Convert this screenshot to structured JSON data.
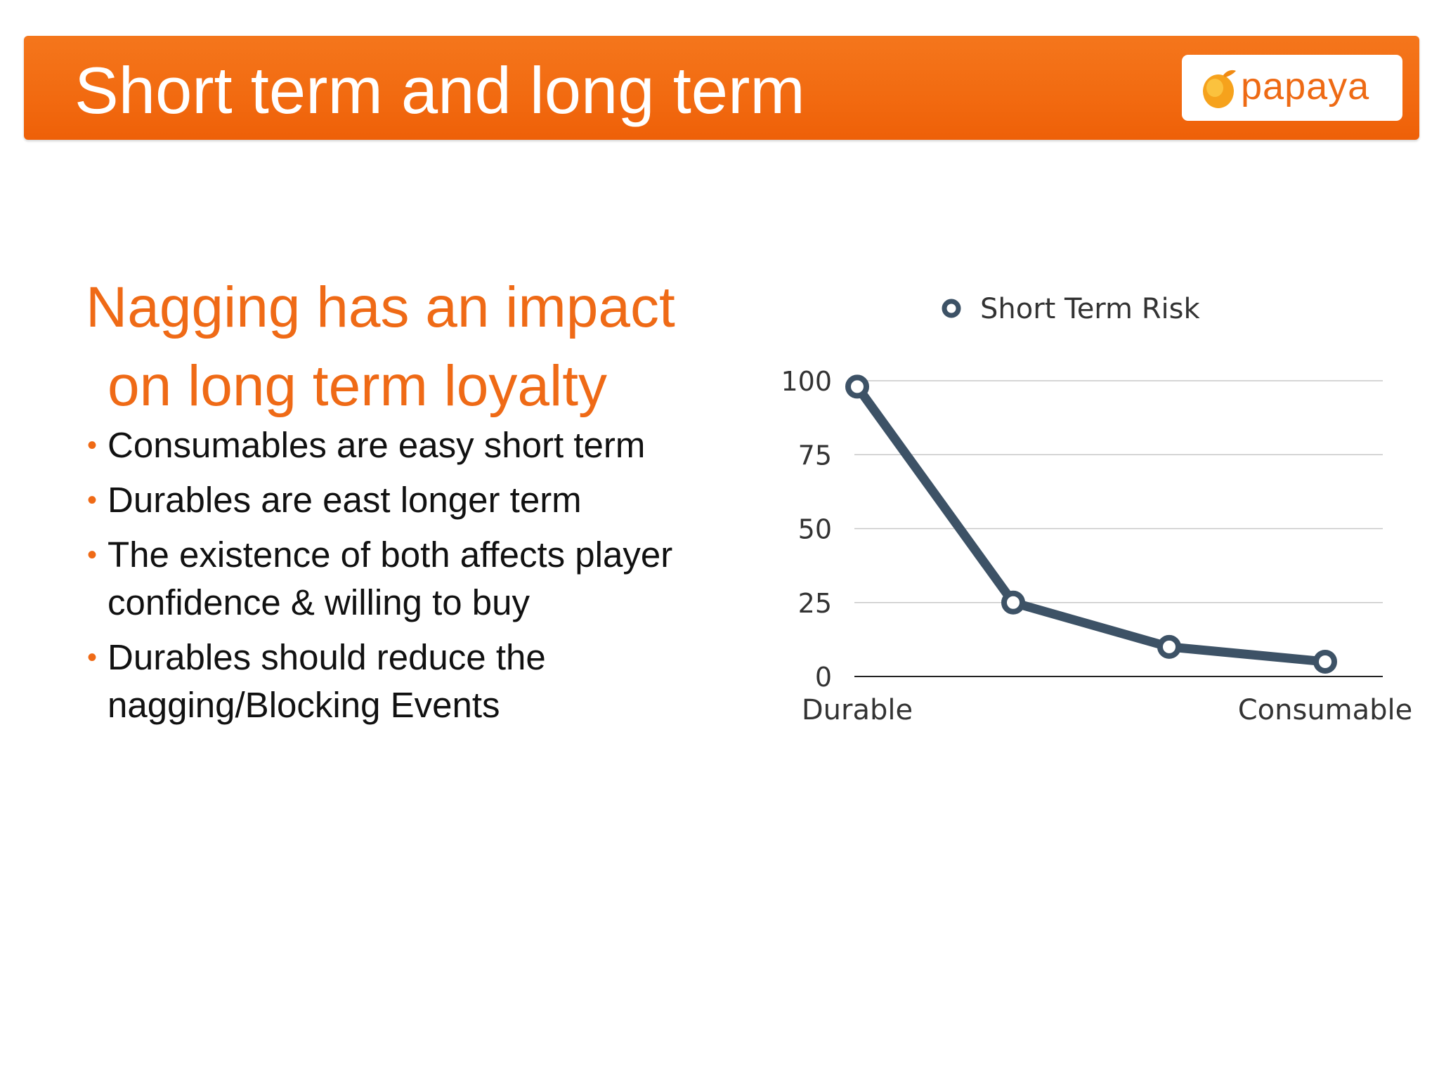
{
  "slide": {
    "title": "Short term and long term",
    "logo_text": "papaya",
    "heading_line1": "Nagging has an impact",
    "heading_line2": "on long term loyalty",
    "bullets": [
      "Consumables are easy short term",
      "Durables are east longer term",
      "The existence of both affects player confidence & willing to buy",
      "Durables should reduce the nagging/Blocking Events"
    ]
  },
  "colors": {
    "title_bar": "#f26a10",
    "accent": "#ef6a16",
    "series_line": "#3d5266",
    "gridline": "#c8c8c8"
  },
  "chart_data": {
    "type": "line",
    "title": "",
    "xlabel": "",
    "ylabel": "",
    "x": [
      "Durable",
      "",
      "",
      "Consumable"
    ],
    "series": [
      {
        "name": "Short Term Risk",
        "values": [
          98,
          25,
          10,
          5
        ]
      }
    ],
    "yticks": [
      0,
      25,
      50,
      75,
      100
    ],
    "ylim": [
      0,
      100
    ],
    "grid": true,
    "legend": "top"
  }
}
